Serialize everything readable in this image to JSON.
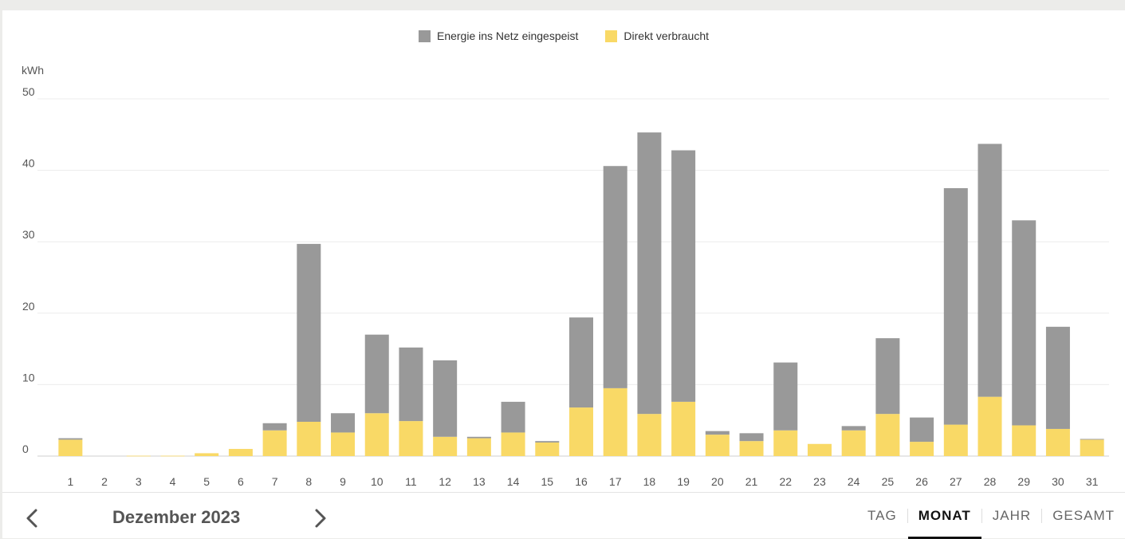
{
  "chart_data": {
    "type": "bar",
    "stacked": true,
    "ylabel": "kWh",
    "ylim": [
      0,
      50
    ],
    "yticks": [
      0,
      10,
      20,
      30,
      40,
      50
    ],
    "grid": true,
    "legend_position": "top-center",
    "categories": [
      "1",
      "2",
      "3",
      "4",
      "5",
      "6",
      "7",
      "8",
      "9",
      "10",
      "11",
      "12",
      "13",
      "14",
      "15",
      "16",
      "17",
      "18",
      "19",
      "20",
      "21",
      "22",
      "23",
      "24",
      "25",
      "26",
      "27",
      "28",
      "29",
      "30",
      "31"
    ],
    "series": [
      {
        "name": "Direkt verbraucht",
        "color": "#f9d966",
        "values": [
          2.3,
          0,
          0.05,
          0.05,
          0.4,
          1.0,
          3.6,
          4.8,
          3.3,
          6.0,
          4.9,
          2.7,
          2.5,
          3.3,
          1.9,
          6.8,
          9.5,
          5.9,
          7.6,
          3.0,
          2.1,
          3.6,
          1.7,
          3.6,
          5.9,
          2.0,
          4.4,
          8.3,
          4.3,
          3.8,
          2.3
        ]
      },
      {
        "name": "Energie ins Netz eingespeist",
        "color": "#999999",
        "values": [
          0.2,
          0,
          0,
          0,
          0,
          0,
          1.0,
          24.9,
          2.7,
          11.0,
          10.3,
          10.7,
          0.2,
          4.3,
          0.2,
          12.6,
          31.1,
          39.4,
          35.2,
          0.5,
          1.1,
          9.5,
          0,
          0.6,
          10.6,
          3.4,
          33.1,
          35.4,
          28.7,
          14.3,
          0.1
        ]
      }
    ]
  },
  "legend": {
    "items": [
      {
        "label": "Energie ins Netz eingespeist",
        "color": "#999999"
      },
      {
        "label": "Direkt verbraucht",
        "color": "#f9d966"
      }
    ]
  },
  "footer": {
    "period_label": "Dezember 2023",
    "prev_icon": "chevron-left-icon",
    "next_icon": "chevron-right-icon",
    "tabs": [
      {
        "label": "TAG",
        "active": false
      },
      {
        "label": "MONAT",
        "active": true
      },
      {
        "label": "JAHR",
        "active": false
      },
      {
        "label": "GESAMT",
        "active": false
      }
    ]
  }
}
